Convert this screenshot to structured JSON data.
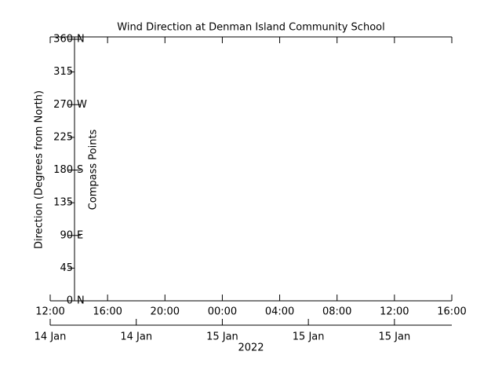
{
  "chart_data": {
    "type": "line",
    "title": "Wind Direction at Denman Island Community School",
    "ylabel": "Direction (Degrees from North)",
    "y2label": "Compass Points",
    "xlabel": "2022",
    "series": [],
    "xlim": [
      12,
      40
    ],
    "xticks": [
      {
        "value": 12,
        "label": "12:00"
      },
      {
        "value": 16,
        "label": "16:00"
      },
      {
        "value": 20,
        "label": "20:00"
      },
      {
        "value": 24,
        "label": "00:00"
      },
      {
        "value": 28,
        "label": "04:00"
      },
      {
        "value": 32,
        "label": "08:00"
      },
      {
        "value": 36,
        "label": "12:00"
      },
      {
        "value": 40,
        "label": "16:00"
      }
    ],
    "date_ticks": [
      {
        "value": 12,
        "label": "14 Jan"
      },
      {
        "value": 18,
        "label": "14 Jan"
      },
      {
        "value": 24,
        "label": "15 Jan"
      },
      {
        "value": 30,
        "label": "15 Jan"
      },
      {
        "value": 36,
        "label": "15 Jan"
      }
    ],
    "ylim": [
      0,
      360
    ],
    "yticks": [
      0,
      45,
      90,
      135,
      180,
      225,
      270,
      315,
      360
    ],
    "y2lim": [
      0,
      360
    ],
    "y2ticks": [
      {
        "value": 0,
        "label": "N"
      },
      {
        "value": 90,
        "label": "E"
      },
      {
        "value": 180,
        "label": "S"
      },
      {
        "value": 270,
        "label": "W"
      },
      {
        "value": 360,
        "label": "N"
      }
    ]
  }
}
